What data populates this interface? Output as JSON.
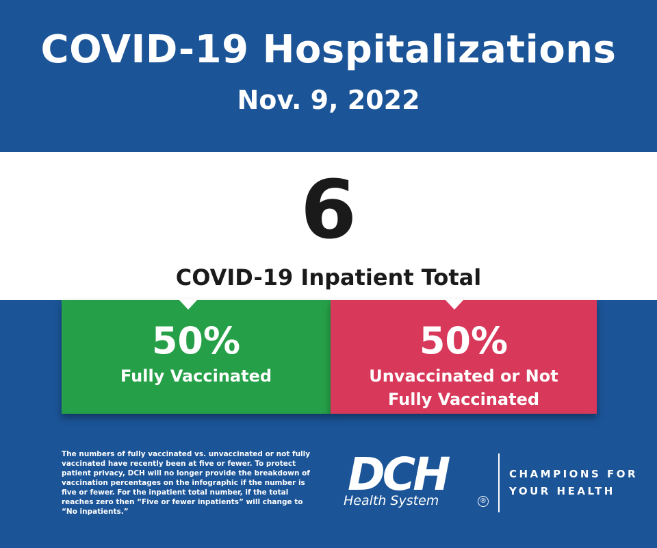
{
  "header": {
    "title": "COVID-19 Hospitalizations",
    "date": "Nov. 9, 2022"
  },
  "total": {
    "value": "6",
    "label": "COVID-19 Inpatient Total"
  },
  "breakdown": {
    "vaccinated": {
      "percent": "50%",
      "label": "Fully Vaccinated",
      "color": "#26a048"
    },
    "unvaccinated": {
      "percent": "50%",
      "line1": "Unvaccinated or Not",
      "line2": "Fully Vaccinated",
      "color": "#d8385a"
    }
  },
  "footnote": "The numbers of fully vaccinated vs. unvaccinated or not fully vaccinated have recently been at five or fewer. To protect patient privacy, DCH will no longer provide the breakdown of vaccination percentages on the infographic if the number is five or fewer. For the inpatient total number, if the total reaches zero then “Five or fewer inpatients” will change to “No inpatients.”",
  "brand": {
    "logo_text": "DCH",
    "logo_subtext": "Health System",
    "registered": "®",
    "tagline_line1": "CHAMPIONS FOR",
    "tagline_line2": "YOUR HEALTH",
    "background_color": "#1b5497"
  }
}
